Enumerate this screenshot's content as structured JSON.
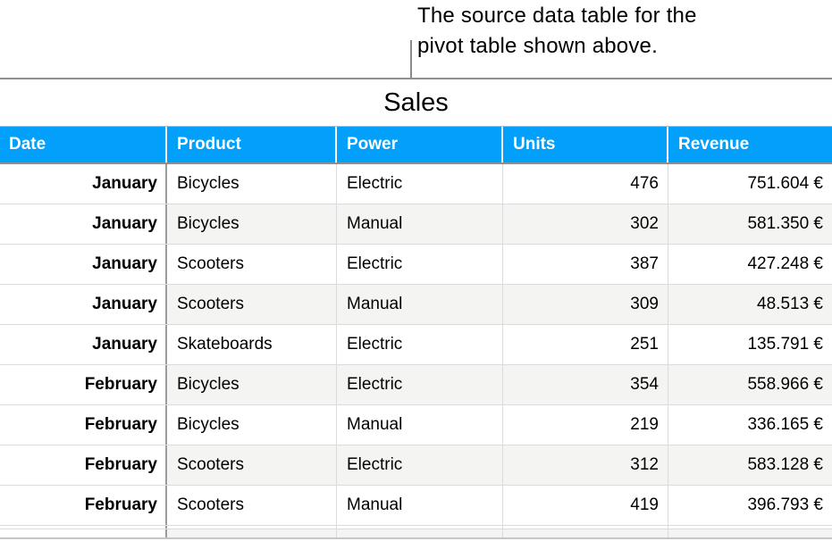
{
  "caption": {
    "line1": "The source data table for the",
    "line2": "pivot table shown above."
  },
  "table": {
    "title": "Sales",
    "columns": [
      "Date",
      "Product",
      "Power",
      "Units",
      "Revenue"
    ],
    "rows": [
      {
        "date": "January",
        "product": "Bicycles",
        "power": "Electric",
        "units": "476",
        "revenue": "751.604 €"
      },
      {
        "date": "January",
        "product": "Bicycles",
        "power": "Manual",
        "units": "302",
        "revenue": "581.350 €"
      },
      {
        "date": "January",
        "product": "Scooters",
        "power": "Electric",
        "units": "387",
        "revenue": "427.248 €"
      },
      {
        "date": "January",
        "product": "Scooters",
        "power": "Manual",
        "units": "309",
        "revenue": "48.513 €"
      },
      {
        "date": "January",
        "product": "Skateboards",
        "power": "Electric",
        "units": "251",
        "revenue": "135.791 €"
      },
      {
        "date": "February",
        "product": "Bicycles",
        "power": "Electric",
        "units": "354",
        "revenue": "558.966 €"
      },
      {
        "date": "February",
        "product": "Bicycles",
        "power": "Manual",
        "units": "219",
        "revenue": "336.165 €"
      },
      {
        "date": "February",
        "product": "Scooters",
        "power": "Electric",
        "units": "312",
        "revenue": "583.128 €"
      },
      {
        "date": "February",
        "product": "Scooters",
        "power": "Manual",
        "units": "419",
        "revenue": "396.793 €"
      }
    ]
  },
  "colors": {
    "header_bg": "#02a0fa",
    "header_text": "#ffffff",
    "alt_row_bg": "#f4f4f2",
    "row_border": "#dbdbdb",
    "date_column_divider": "#9c9c9c",
    "table_outline": "#8f8f8f",
    "callout_line": "#8a8a8a"
  }
}
